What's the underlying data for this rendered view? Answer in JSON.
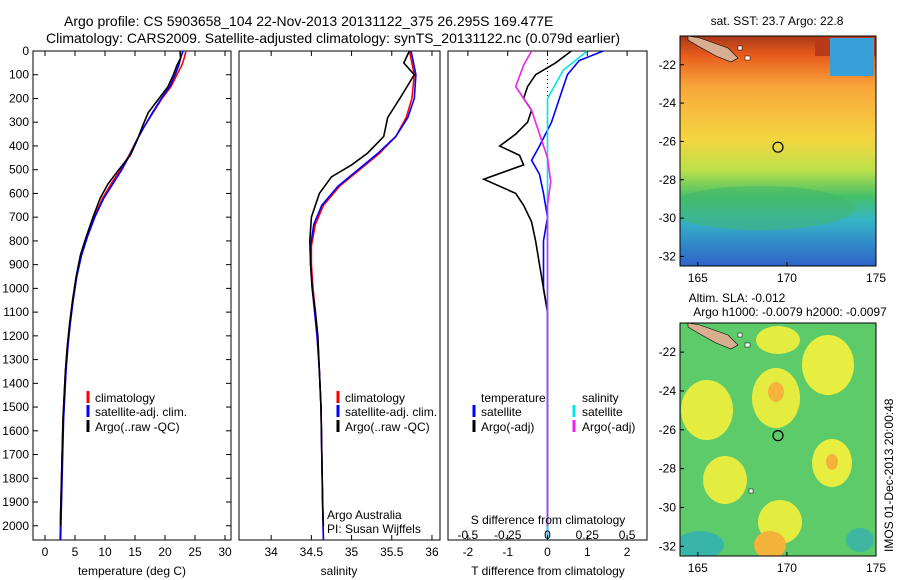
{
  "header": {
    "line1": "Argo profile: CS 5903658_104 22-Nov-2013 20131122_375 26.295S 169.477E",
    "line2": "Climatology: CARS2009. Satellite-adjusted climatology: synTS_20131122.nc (0.079d earlier)"
  },
  "footer_stamp": "IMOS 01-Dec-2013 20:00:48",
  "colors": {
    "climatology": "#ff0000",
    "satellite": "#0000ff",
    "argo": "#000000",
    "sal_satellite": "#00e6e6",
    "sal_argo": "#ee22ee"
  },
  "chart_data": [
    {
      "type": "line",
      "name": "temperature-profile",
      "xlabel": "temperature (deg C)",
      "ylabel": "",
      "xlim": [
        -2,
        31
      ],
      "ylim": [
        2060,
        0
      ],
      "xticks": [
        0,
        5,
        10,
        15,
        20,
        25,
        30
      ],
      "yticks": [
        0,
        100,
        200,
        300,
        400,
        500,
        600,
        700,
        800,
        900,
        1000,
        1100,
        1200,
        1300,
        1400,
        1500,
        1600,
        1700,
        1800,
        1900,
        2000
      ],
      "legend": [
        "climatology",
        "satellite-adj. clim.",
        "Argo(..raw -QC)"
      ],
      "series": [
        {
          "name": "climatology",
          "color": "#ff0000",
          "points": [
            [
              23.5,
              0
            ],
            [
              23.2,
              30
            ],
            [
              22.8,
              60
            ],
            [
              22.0,
              100
            ],
            [
              21.0,
              150
            ],
            [
              19.5,
              200
            ],
            [
              18.0,
              260
            ],
            [
              16.5,
              320
            ],
            [
              15.2,
              380
            ],
            [
              14.0,
              440
            ],
            [
              12.6,
              500
            ],
            [
              11.0,
              560
            ],
            [
              9.6,
              620
            ],
            [
              8.2,
              700
            ],
            [
              7.0,
              780
            ],
            [
              6.0,
              860
            ],
            [
              5.2,
              950
            ],
            [
              4.6,
              1050
            ],
            [
              4.1,
              1150
            ],
            [
              3.7,
              1250
            ],
            [
              3.4,
              1350
            ],
            [
              3.2,
              1450
            ],
            [
              3.0,
              1550
            ],
            [
              2.9,
              1650
            ],
            [
              2.8,
              1750
            ],
            [
              2.7,
              1850
            ],
            [
              2.6,
              1950
            ],
            [
              2.5,
              2060
            ]
          ]
        },
        {
          "name": "satellite-adj. clim.",
          "color": "#0000ff",
          "points": [
            [
              23.0,
              0
            ],
            [
              22.6,
              30
            ],
            [
              22.3,
              60
            ],
            [
              21.7,
              100
            ],
            [
              20.8,
              150
            ],
            [
              19.4,
              200
            ],
            [
              17.9,
              260
            ],
            [
              16.5,
              320
            ],
            [
              15.2,
              380
            ],
            [
              14.1,
              440
            ],
            [
              12.8,
              500
            ],
            [
              11.3,
              560
            ],
            [
              9.8,
              620
            ],
            [
              8.3,
              700
            ],
            [
              7.1,
              780
            ],
            [
              6.1,
              860
            ],
            [
              5.3,
              950
            ],
            [
              4.7,
              1050
            ],
            [
              4.2,
              1150
            ],
            [
              3.8,
              1250
            ],
            [
              3.5,
              1350
            ],
            [
              3.3,
              1450
            ],
            [
              3.1,
              1550
            ],
            [
              3.0,
              1650
            ],
            [
              2.9,
              1750
            ],
            [
              2.8,
              1850
            ],
            [
              2.7,
              1950
            ],
            [
              2.6,
              2060
            ]
          ]
        },
        {
          "name": "Argo(..raw -QC)",
          "color": "#000000",
          "points": [
            [
              22.5,
              0
            ],
            [
              22.6,
              30
            ],
            [
              22.0,
              60
            ],
            [
              21.4,
              100
            ],
            [
              20.5,
              150
            ],
            [
              19.0,
              200
            ],
            [
              17.2,
              260
            ],
            [
              16.2,
              320
            ],
            [
              15.3,
              380
            ],
            [
              14.2,
              440
            ],
            [
              12.3,
              500
            ],
            [
              10.5,
              560
            ],
            [
              9.2,
              620
            ],
            [
              8.0,
              700
            ],
            [
              6.9,
              780
            ],
            [
              5.9,
              860
            ],
            [
              5.2,
              950
            ],
            [
              4.6,
              1050
            ],
            [
              4.1,
              1150
            ],
            [
              3.7,
              1250
            ],
            [
              3.4,
              1350
            ],
            [
              3.2,
              1450
            ],
            [
              3.0,
              1550
            ],
            [
              2.9,
              1650
            ],
            [
              2.8,
              1750
            ],
            [
              2.7,
              1850
            ],
            [
              2.6,
              1950
            ],
            [
              2.6,
              2000
            ]
          ]
        }
      ]
    },
    {
      "type": "line",
      "name": "salinity-profile",
      "xlabel": "salinity",
      "xlim": [
        33.6,
        36.1
      ],
      "ylim": [
        2060,
        0
      ],
      "xticks": [
        34,
        34.5,
        35,
        35.5,
        36
      ],
      "legend": [
        "climatology",
        "satellite-adj. clim.",
        "Argo(..raw -QC)"
      ],
      "annotation": [
        "Argo Australia",
        "PI: Susan Wijffels"
      ],
      "series": [
        {
          "name": "climatology",
          "color": "#ff0000",
          "points": [
            [
              35.72,
              0
            ],
            [
              35.75,
              50
            ],
            [
              35.78,
              100
            ],
            [
              35.75,
              200
            ],
            [
              35.68,
              280
            ],
            [
              35.55,
              360
            ],
            [
              35.35,
              430
            ],
            [
              35.1,
              500
            ],
            [
              34.85,
              570
            ],
            [
              34.65,
              650
            ],
            [
              34.55,
              730
            ],
            [
              34.5,
              820
            ],
            [
              34.5,
              900
            ],
            [
              34.52,
              1000
            ],
            [
              34.55,
              1100
            ],
            [
              34.58,
              1200
            ],
            [
              34.6,
              1350
            ],
            [
              34.62,
              1500
            ],
            [
              34.63,
              1700
            ],
            [
              34.64,
              1900
            ],
            [
              34.65,
              2060
            ]
          ]
        },
        {
          "name": "satellite-adj. clim.",
          "color": "#0000ff",
          "points": [
            [
              35.74,
              0
            ],
            [
              35.77,
              50
            ],
            [
              35.8,
              100
            ],
            [
              35.78,
              200
            ],
            [
              35.7,
              280
            ],
            [
              35.55,
              360
            ],
            [
              35.33,
              430
            ],
            [
              35.08,
              500
            ],
            [
              34.83,
              570
            ],
            [
              34.63,
              650
            ],
            [
              34.53,
              730
            ],
            [
              34.49,
              820
            ],
            [
              34.49,
              900
            ],
            [
              34.51,
              1000
            ],
            [
              34.54,
              1100
            ],
            [
              34.57,
              1200
            ],
            [
              34.6,
              1350
            ],
            [
              34.62,
              1500
            ],
            [
              34.63,
              1700
            ],
            [
              34.64,
              1900
            ],
            [
              34.65,
              2060
            ]
          ]
        },
        {
          "name": "Argo(..raw -QC)",
          "color": "#000000",
          "points": [
            [
              35.72,
              0
            ],
            [
              35.65,
              50
            ],
            [
              35.78,
              100
            ],
            [
              35.6,
              200
            ],
            [
              35.45,
              280
            ],
            [
              35.4,
              360
            ],
            [
              35.2,
              430
            ],
            [
              35.0,
              480
            ],
            [
              34.75,
              530
            ],
            [
              34.6,
              600
            ],
            [
              34.5,
              700
            ],
            [
              34.48,
              800
            ],
            [
              34.49,
              900
            ],
            [
              34.51,
              1000
            ],
            [
              34.55,
              1100
            ],
            [
              34.58,
              1200
            ],
            [
              34.6,
              1350
            ],
            [
              34.62,
              1500
            ],
            [
              34.63,
              1700
            ],
            [
              34.64,
              1900
            ],
            [
              34.65,
              2000
            ]
          ]
        }
      ]
    },
    {
      "type": "line",
      "name": "difference-profile",
      "xlabel": "T difference from climatology",
      "xlabel2": "S difference from climatology",
      "xlim": [
        -2.5,
        2.5
      ],
      "ylim": [
        2060,
        0
      ],
      "xticks": [
        -2,
        -1,
        0,
        1,
        2
      ],
      "xticks_s": [
        -0.5,
        -0.25,
        0,
        0.25,
        0.5
      ],
      "xtick_labels_s": [
        "-0.5",
        "-0.25",
        "0",
        "0.25",
        "0.5"
      ],
      "legend_left_title": "temperature",
      "legend_right_title": "salinity",
      "legend_left": [
        "satellite",
        "Argo(-adj)"
      ],
      "legend_right": [
        "satellite",
        "Argo(-adj)"
      ],
      "series": [
        {
          "name": "T satellite",
          "color": "#0000ff",
          "points": [
            [
              1.4,
              0
            ],
            [
              0.8,
              40
            ],
            [
              0.5,
              100
            ],
            [
              0.3,
              200
            ],
            [
              0.1,
              300
            ],
            [
              -0.2,
              400
            ],
            [
              -0.4,
              460
            ],
            [
              -0.2,
              520
            ],
            [
              -0.1,
              600
            ],
            [
              0.0,
              700
            ],
            [
              -0.1,
              800
            ],
            [
              -0.1,
              900
            ],
            [
              -0.1,
              1000
            ],
            [
              0.0,
              1100
            ],
            [
              0.0,
              1200
            ],
            [
              0.0,
              1300
            ],
            [
              0.0,
              1500
            ],
            [
              0.0,
              1700
            ],
            [
              0.0,
              1900
            ],
            [
              0.0,
              2060
            ]
          ]
        },
        {
          "name": "T Argo(-adj)",
          "color": "#000000",
          "points": [
            [
              0.6,
              0
            ],
            [
              0.2,
              50
            ],
            [
              -0.3,
              100
            ],
            [
              -0.5,
              150
            ],
            [
              -0.6,
              200
            ],
            [
              -0.4,
              250
            ],
            [
              -0.5,
              300
            ],
            [
              -0.8,
              350
            ],
            [
              -1.2,
              400
            ],
            [
              -0.7,
              440
            ],
            [
              -0.6,
              480
            ],
            [
              -1.6,
              540
            ],
            [
              -0.8,
              600
            ],
            [
              -0.6,
              650
            ],
            [
              -0.4,
              720
            ],
            [
              -0.3,
              800
            ],
            [
              -0.2,
              900
            ],
            [
              -0.1,
              1000
            ],
            [
              0.0,
              1100
            ],
            [
              0.0,
              1200
            ],
            [
              0.0,
              1300
            ],
            [
              0.0,
              1500
            ],
            [
              0.0,
              1700
            ],
            [
              0.0,
              1900
            ],
            [
              0.0,
              2000
            ]
          ]
        },
        {
          "name": "S satellite",
          "color": "#00e6e6",
          "points": [
            [
              0.25,
              0
            ],
            [
              0.1,
              80
            ],
            [
              0.0,
              200
            ],
            [
              0.0,
              400
            ],
            [
              0.0,
              600
            ],
            [
              0.0,
              800
            ],
            [
              0.0,
              1000
            ],
            [
              0.0,
              1200
            ],
            [
              0.0,
              1400
            ],
            [
              0.0,
              1600
            ],
            [
              0.0,
              1800
            ],
            [
              0.0,
              2060
            ]
          ]
        },
        {
          "name": "S Argo(-adj)",
          "color": "#ee22ee",
          "points": [
            [
              -0.1,
              0
            ],
            [
              -0.15,
              60
            ],
            [
              -0.2,
              150
            ],
            [
              -0.1,
              250
            ],
            [
              -0.05,
              350
            ],
            [
              0.0,
              450
            ],
            [
              0.02,
              550
            ],
            [
              0.0,
              650
            ],
            [
              0.0,
              800
            ],
            [
              0.0,
              1000
            ],
            [
              0.0,
              1200
            ],
            [
              0.0,
              1400
            ],
            [
              0.0,
              1600
            ],
            [
              0.0,
              1800
            ],
            [
              0.0,
              2000
            ]
          ]
        }
      ]
    },
    {
      "type": "heatmap",
      "name": "sst-map",
      "title": "sat. SST: 23.7 Argo: 22.8",
      "xlim": [
        164,
        175
      ],
      "ylim": [
        -32.5,
        -20.5
      ],
      "xticks": [
        165,
        170,
        175
      ],
      "yticks": [
        -22,
        -24,
        -26,
        -28,
        -30,
        -32
      ],
      "marker": [
        169.5,
        -26.3
      ]
    },
    {
      "type": "heatmap",
      "name": "sla-map",
      "title": "Altim. SLA: -0.012",
      "subtitle": "Argo h1000: -0.0079 h2000: -0.0097",
      "xlim": [
        164,
        175
      ],
      "ylim": [
        -32.5,
        -20.5
      ],
      "xticks": [
        165,
        170,
        175
      ],
      "yticks": [
        -22,
        -24,
        -26,
        -28,
        -30,
        -32
      ],
      "marker": [
        169.5,
        -26.3
      ]
    }
  ]
}
